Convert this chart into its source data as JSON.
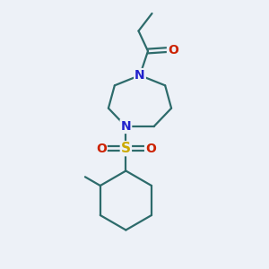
{
  "background_color": "#edf1f7",
  "bond_color": "#2d6b6b",
  "N_color": "#2222cc",
  "O_color": "#cc2200",
  "S_color": "#ccaa00",
  "line_width": 1.6,
  "font_size_atoms": 10,
  "figsize": [
    3.0,
    3.0
  ],
  "dpi": 100,
  "xlim": [
    0,
    10
  ],
  "ylim": [
    0,
    10
  ]
}
